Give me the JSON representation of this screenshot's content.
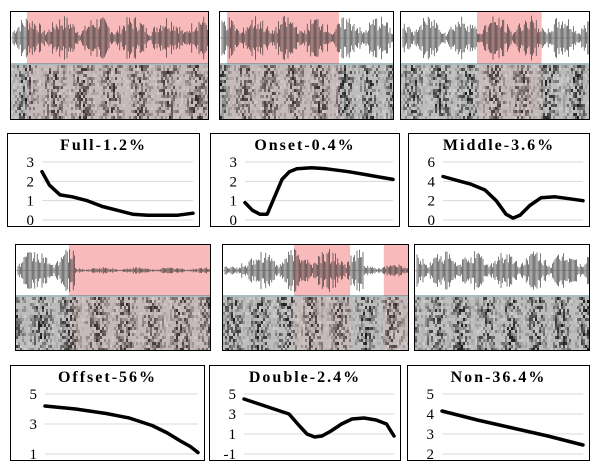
{
  "colors": {
    "highlight": "#f5a3a3",
    "waveform": "#222222",
    "grid": "#d9d9d9",
    "curve": "#000000",
    "divider": "#4a7c84"
  },
  "spectrogram_panels": [
    {
      "name": "full",
      "highlights": [
        [
          0.08,
          1.0
        ]
      ]
    },
    {
      "name": "onset",
      "highlights": [
        [
          0.04,
          0.68
        ]
      ]
    },
    {
      "name": "middle",
      "highlights": [
        [
          0.4,
          0.74
        ]
      ]
    },
    {
      "name": "offset",
      "highlights": [
        [
          0.27,
          1.0
        ]
      ]
    },
    {
      "name": "double",
      "highlights": [
        [
          0.38,
          0.68
        ],
        [
          0.86,
          1.0
        ]
      ]
    },
    {
      "name": "non",
      "highlights": []
    }
  ],
  "chart_data": [
    {
      "type": "line",
      "title": "Full-1.2%",
      "ylim": [
        0,
        3
      ],
      "yticks": [
        0,
        1,
        2,
        3
      ],
      "x": [
        0,
        0.05,
        0.12,
        0.2,
        0.3,
        0.4,
        0.5,
        0.6,
        0.7,
        0.8,
        0.9,
        1.0
      ],
      "y": [
        2.5,
        1.8,
        1.3,
        1.2,
        1.0,
        0.7,
        0.5,
        0.3,
        0.25,
        0.25,
        0.25,
        0.35
      ]
    },
    {
      "type": "line",
      "title": "Onset-0.4%",
      "ylim": [
        0,
        3
      ],
      "yticks": [
        0,
        1,
        2,
        3
      ],
      "x": [
        0,
        0.05,
        0.1,
        0.15,
        0.2,
        0.25,
        0.3,
        0.35,
        0.45,
        0.55,
        0.7,
        0.85,
        1.0
      ],
      "y": [
        0.9,
        0.5,
        0.3,
        0.3,
        1.2,
        2.1,
        2.5,
        2.65,
        2.7,
        2.65,
        2.5,
        2.3,
        2.1
      ]
    },
    {
      "type": "line",
      "title": "Middle-3.6%",
      "ylim": [
        0,
        6
      ],
      "yticks": [
        0,
        2,
        4,
        6
      ],
      "x": [
        0,
        0.1,
        0.2,
        0.3,
        0.38,
        0.45,
        0.5,
        0.55,
        0.62,
        0.7,
        0.8,
        0.9,
        1.0
      ],
      "y": [
        4.5,
        4.1,
        3.7,
        3.1,
        2.0,
        0.6,
        0.2,
        0.5,
        1.5,
        2.3,
        2.4,
        2.2,
        2.0
      ]
    },
    {
      "type": "line",
      "title": "Offset-56%",
      "ylim": [
        1,
        5
      ],
      "yticks": [
        1,
        3,
        5
      ],
      "x": [
        0,
        0.2,
        0.4,
        0.55,
        0.7,
        0.8,
        0.88,
        0.95,
        1.0
      ],
      "y": [
        4.2,
        4.0,
        3.7,
        3.4,
        2.9,
        2.4,
        1.9,
        1.5,
        1.1
      ]
    },
    {
      "type": "line",
      "title": "Double-2.4%",
      "ylim": [
        -1,
        5
      ],
      "yticks": [
        -1,
        1,
        3,
        5
      ],
      "x": [
        0,
        0.1,
        0.2,
        0.3,
        0.37,
        0.42,
        0.47,
        0.52,
        0.58,
        0.65,
        0.72,
        0.8,
        0.88,
        0.95,
        1.0
      ],
      "y": [
        4.5,
        4.0,
        3.5,
        3.0,
        1.8,
        1.0,
        0.7,
        0.8,
        1.3,
        2.0,
        2.5,
        2.6,
        2.4,
        2.0,
        0.8
      ]
    },
    {
      "type": "line",
      "title": "Non-36.4%",
      "ylim": [
        2,
        5
      ],
      "yticks": [
        2,
        3,
        4,
        5
      ],
      "x": [
        0,
        0.25,
        0.5,
        0.75,
        1.0
      ],
      "y": [
        4.15,
        3.7,
        3.3,
        2.9,
        2.45
      ]
    }
  ]
}
